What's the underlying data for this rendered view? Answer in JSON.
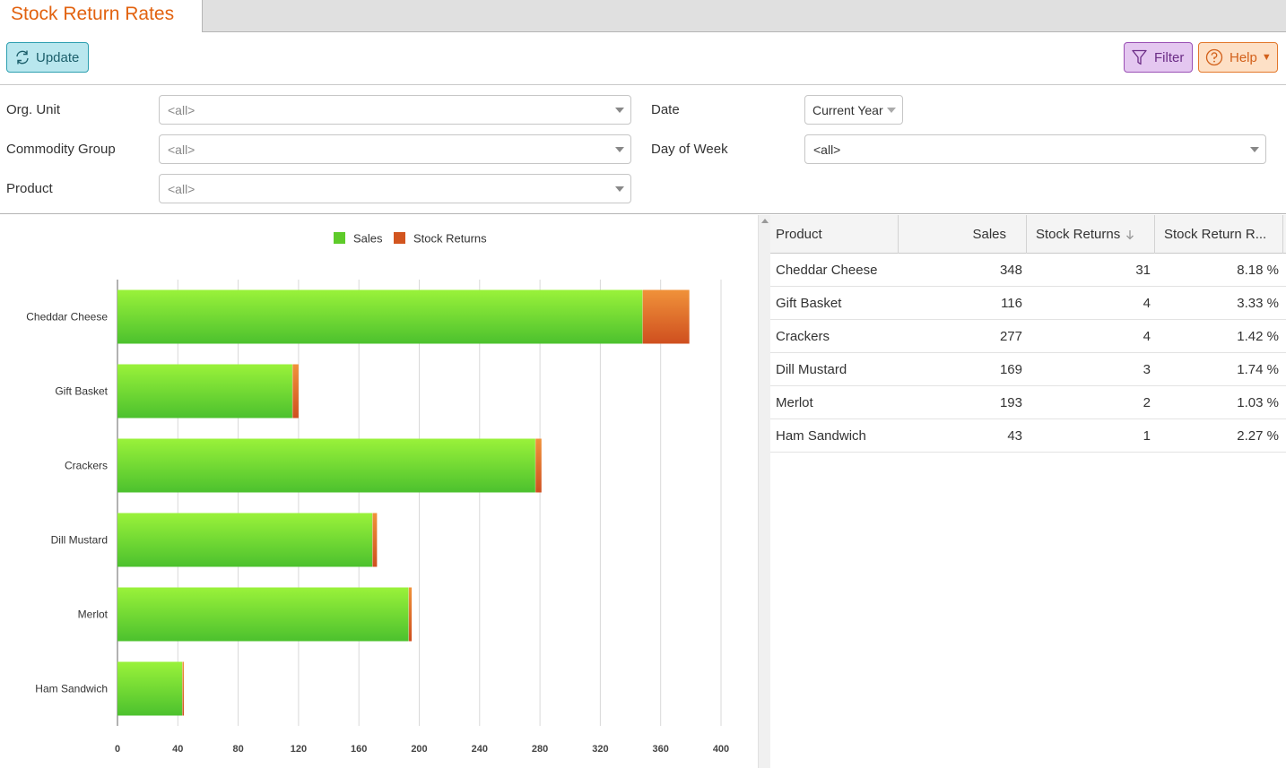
{
  "app": {
    "tab_title": "Stock Return Rates"
  },
  "toolbar": {
    "update_label": "Update",
    "filter_label": "Filter",
    "help_label": "Help"
  },
  "filters": {
    "org_unit": {
      "label": "Org. Unit",
      "value": "<all>"
    },
    "commodity_group": {
      "label": "Commodity Group",
      "value": "<all>"
    },
    "product": {
      "label": "Product",
      "value": "<all>"
    },
    "date": {
      "label": "Date",
      "value": "Current Year"
    },
    "day_of_week": {
      "label": "Day of Week",
      "value": "<all>"
    }
  },
  "colors": {
    "sales": "#5ecb2a",
    "stock_returns": "#d2551f",
    "accent": "#e2620f"
  },
  "chart_data": {
    "type": "bar",
    "orientation": "horizontal",
    "stacked": true,
    "categories": [
      "Cheddar Cheese",
      "Gift Basket",
      "Crackers",
      "Dill Mustard",
      "Merlot",
      "Ham Sandwich"
    ],
    "series": [
      {
        "name": "Sales",
        "values": [
          348,
          116,
          277,
          169,
          193,
          43
        ]
      },
      {
        "name": "Stock Returns",
        "values": [
          31,
          4,
          4,
          3,
          2,
          1
        ]
      }
    ],
    "xlim": [
      0,
      400
    ],
    "xticks": [
      "0",
      "40",
      "80",
      "120",
      "160",
      "200",
      "240",
      "280",
      "320",
      "360",
      "400"
    ],
    "legend": "top-center",
    "grid": true
  },
  "table": {
    "columns": [
      "Product",
      "Sales",
      "Stock Returns",
      "Stock Return R..."
    ],
    "sort": {
      "column": "Stock Returns",
      "direction": "descending"
    },
    "rows": [
      [
        "Cheddar Cheese",
        "348",
        "31",
        "8.18 %"
      ],
      [
        "Gift Basket",
        "116",
        "4",
        "3.33 %"
      ],
      [
        "Crackers",
        "277",
        "4",
        "1.42 %"
      ],
      [
        "Dill Mustard",
        "169",
        "3",
        "1.74 %"
      ],
      [
        "Merlot",
        "193",
        "2",
        "1.03 %"
      ],
      [
        "Ham Sandwich",
        "43",
        "1",
        "2.27 %"
      ]
    ]
  }
}
